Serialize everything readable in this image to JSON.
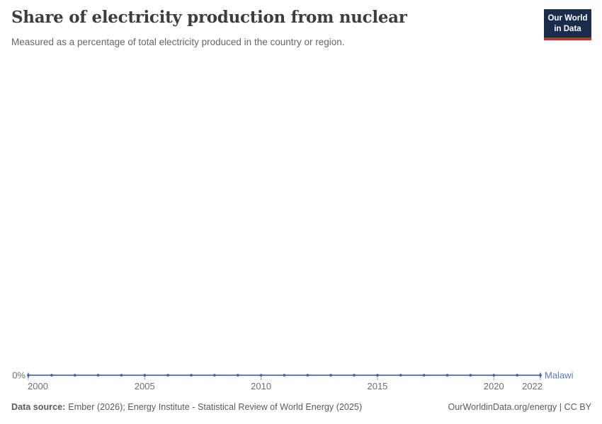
{
  "header": {
    "title": "Share of electricity production from nuclear",
    "subtitle": "Measured as a percentage of total electricity produced in the country or region.",
    "logo": {
      "line1": "Our World",
      "line2": "in Data",
      "bg_color": "#1A2C4C",
      "bar_color": "#C0322A"
    }
  },
  "chart_data": {
    "type": "line",
    "title": "Share of electricity production from nuclear",
    "xlabel": "",
    "ylabel": "",
    "grid": false,
    "x": [
      2000,
      2001,
      2002,
      2003,
      2004,
      2005,
      2006,
      2007,
      2008,
      2009,
      2010,
      2011,
      2012,
      2013,
      2014,
      2015,
      2016,
      2017,
      2018,
      2019,
      2020,
      2021,
      2022
    ],
    "x_ticks": [
      2000,
      2005,
      2010,
      2015,
      2020,
      2022
    ],
    "y_ticks": [
      {
        "label": "0%",
        "value": 0
      }
    ],
    "ylim": [
      0,
      100
    ],
    "legend_position": "end-of-line",
    "series": [
      {
        "name": "Malawi",
        "color": "#4C6BB3",
        "dot_color": "#4061A8",
        "label_color": "#577BC4",
        "values": [
          0,
          0,
          0,
          0,
          0,
          0,
          0,
          0,
          0,
          0,
          0,
          0,
          0,
          0,
          0,
          0,
          0,
          0,
          0,
          0,
          0,
          0,
          0
        ]
      }
    ]
  },
  "footer": {
    "source_label": "Data source:",
    "source_text": "Ember (2026); Energy Institute - Statistical Review of World Energy (2025)",
    "license_text": "OurWorldinData.org/energy | CC BY"
  }
}
